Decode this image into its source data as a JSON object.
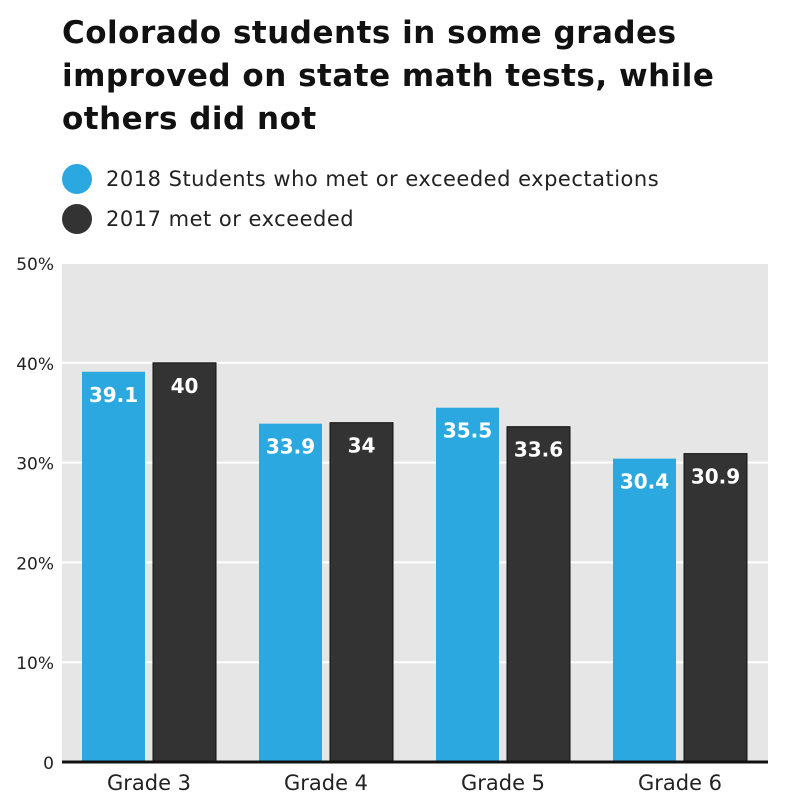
{
  "chart_data": {
    "type": "bar",
    "title": "Colorado students in some grades improved on state math tests, while others did not",
    "categories": [
      "Grade 3",
      "Grade 4",
      "Grade 5",
      "Grade 6"
    ],
    "series": [
      {
        "name": "2018 Students who met or exceeded expectations",
        "color": "#2ca8e0",
        "values": [
          39.1,
          33.9,
          35.5,
          30.4
        ],
        "labels": [
          "39.1",
          "33.9",
          "35.5",
          "30.4"
        ]
      },
      {
        "name": "2017 met or exceeded",
        "color": "#333333",
        "values": [
          40,
          34,
          33.6,
          30.9
        ],
        "labels": [
          "40",
          "34",
          "33.6",
          "30.9"
        ]
      }
    ],
    "ylim": [
      0,
      50
    ],
    "yticks": [
      0,
      10,
      20,
      30,
      40,
      50
    ],
    "ytick_labels": [
      "0",
      "10%",
      "20%",
      "30%",
      "40%",
      "50%"
    ],
    "xlabel": "",
    "ylabel": "",
    "grid": true,
    "legend": "top-left"
  }
}
